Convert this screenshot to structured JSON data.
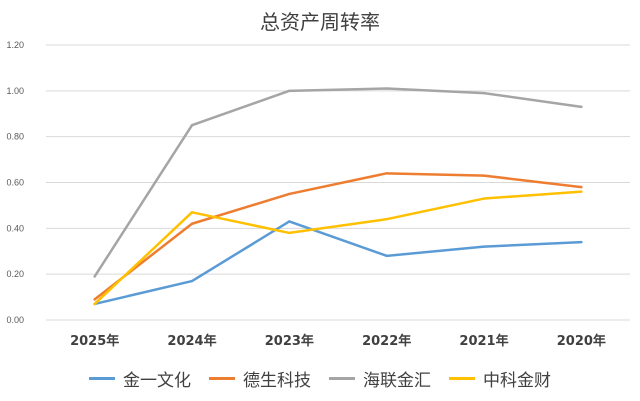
{
  "chart_data": {
    "type": "line",
    "title": "总资产周转率",
    "categories": [
      "2025年",
      "2024年",
      "2023年",
      "2022年",
      "2021年",
      "2020年"
    ],
    "ylim": [
      0,
      1.2
    ],
    "yticks": [
      "0.00",
      "0.20",
      "0.40",
      "0.60",
      "0.80",
      "1.00",
      "1.20"
    ],
    "grid": true,
    "legend_position": "bottom",
    "series": [
      {
        "name": "金一文化",
        "color": "#5B9BD5",
        "values": [
          0.07,
          0.17,
          0.43,
          0.28,
          0.32,
          0.34
        ]
      },
      {
        "name": "德生科技",
        "color": "#ED7D31",
        "values": [
          0.09,
          0.42,
          0.55,
          0.64,
          0.63,
          0.58
        ]
      },
      {
        "name": "海联金汇",
        "color": "#A5A5A5",
        "values": [
          0.19,
          0.85,
          1.0,
          1.01,
          0.99,
          0.93
        ]
      },
      {
        "name": "中科金财",
        "color": "#FFC000",
        "values": [
          0.07,
          0.47,
          0.38,
          0.44,
          0.53,
          0.56
        ]
      }
    ]
  }
}
